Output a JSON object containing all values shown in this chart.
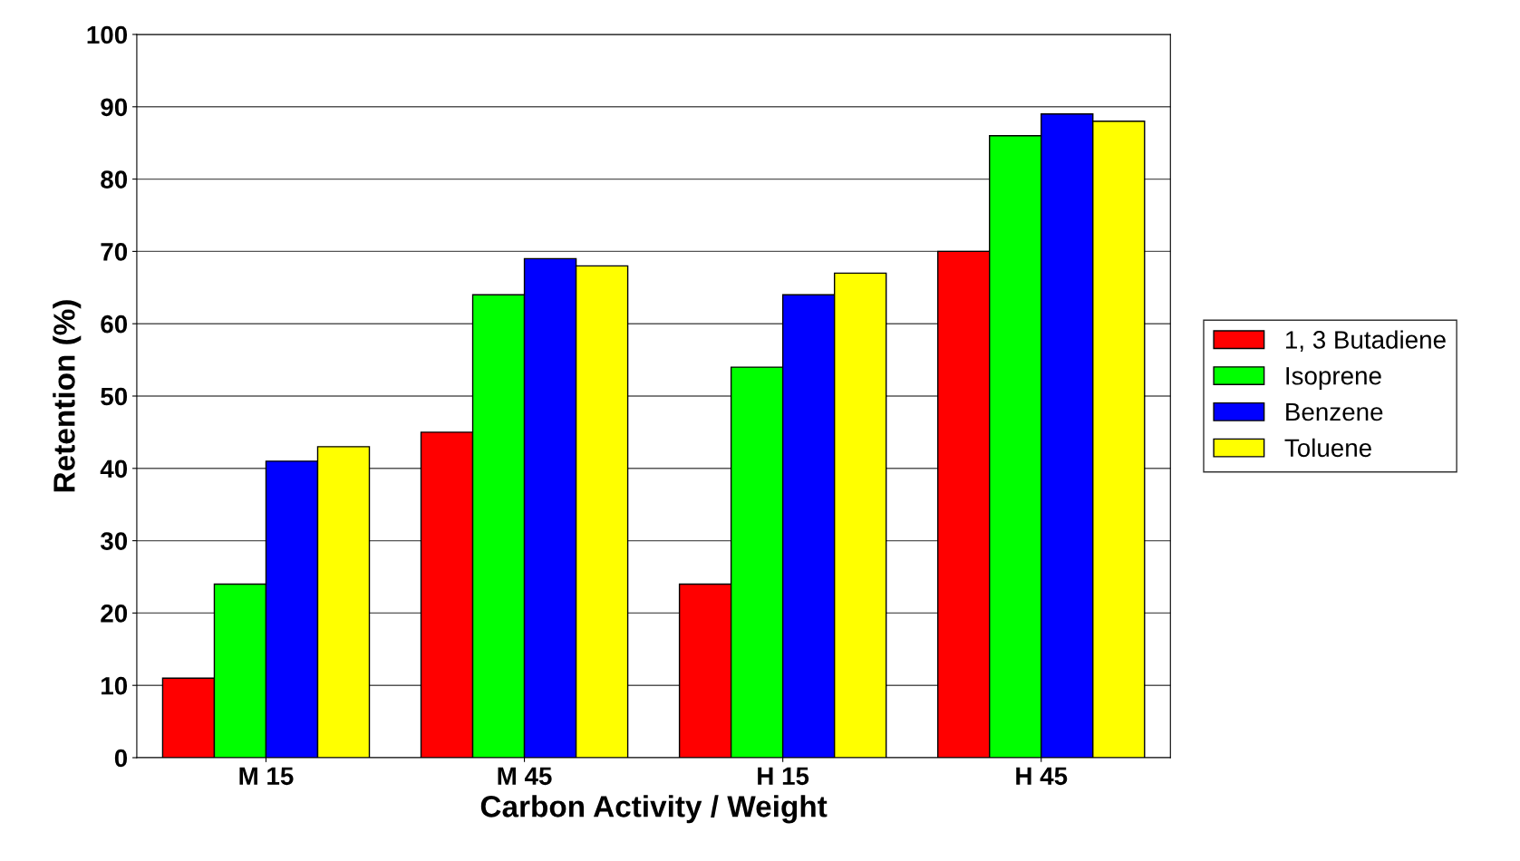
{
  "chart_data": {
    "type": "bar",
    "xlabel": "Carbon Activity / Weight",
    "ylabel": "Retention (%)",
    "categories": [
      "M 15",
      "M 45",
      "H 15",
      "H 45"
    ],
    "series": [
      {
        "name": "1, 3 Butadiene",
        "color": "#ff0000",
        "values": [
          11,
          45,
          24,
          70
        ]
      },
      {
        "name": "Isoprene",
        "color": "#00ff00",
        "values": [
          24,
          64,
          54,
          86
        ]
      },
      {
        "name": "Benzene",
        "color": "#0000ff",
        "values": [
          41,
          69,
          64,
          89
        ]
      },
      {
        "name": "Toluene",
        "color": "#ffff00",
        "values": [
          43,
          68,
          67,
          88
        ]
      }
    ],
    "ylim": [
      0,
      100
    ],
    "yticks": [
      0,
      10,
      20,
      30,
      40,
      50,
      60,
      70,
      80,
      90,
      100
    ],
    "grid": "y",
    "legend": "right"
  }
}
